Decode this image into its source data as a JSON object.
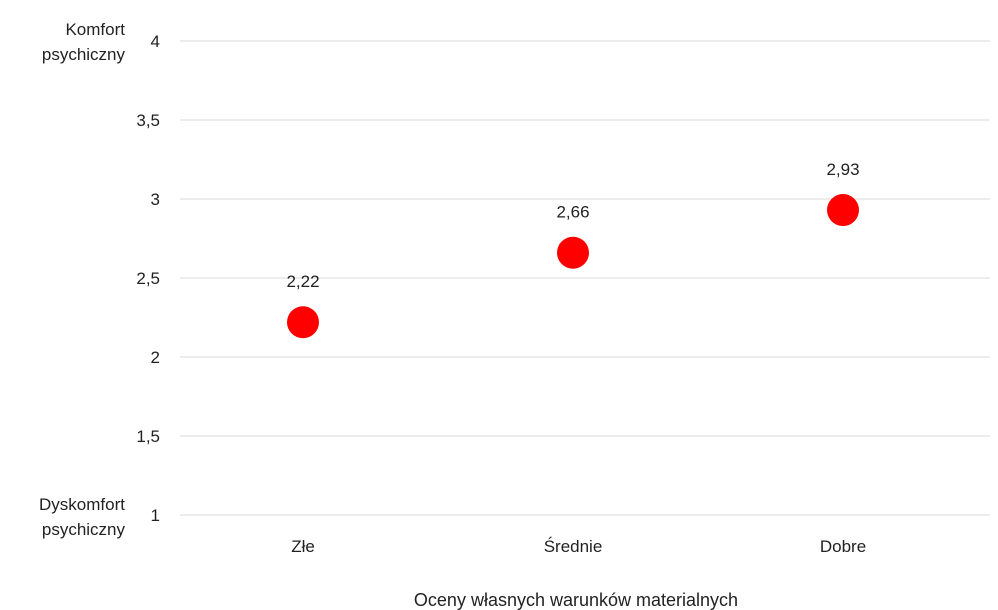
{
  "chart_data": {
    "type": "scatter",
    "categories": [
      "Złe",
      "Średnie",
      "Dobre"
    ],
    "values": [
      2.22,
      2.66,
      2.93
    ],
    "data_labels": [
      "2,22",
      "2,66",
      "2,93"
    ],
    "y_ticks": [
      {
        "value": 1,
        "label": "1"
      },
      {
        "value": 1.5,
        "label": "1,5"
      },
      {
        "value": 2,
        "label": "2"
      },
      {
        "value": 2.5,
        "label": "2,5"
      },
      {
        "value": 3,
        "label": "3"
      },
      {
        "value": 3.5,
        "label": "3,5"
      },
      {
        "value": 4,
        "label": "4"
      }
    ],
    "ylim": [
      1,
      4
    ],
    "grid": true,
    "xlabel": "Oceny własnych warunków materialnych",
    "ylabel": "",
    "y_top_label": [
      "Komfort",
      "psychiczny"
    ],
    "y_bottom_label": [
      "Dyskomfort",
      "psychiczny"
    ],
    "marker_color": "#ff0000",
    "legend": "none"
  }
}
